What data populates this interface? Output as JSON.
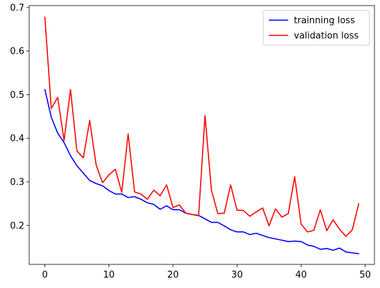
{
  "chart_data": {
    "type": "line",
    "title": "",
    "xlabel": "",
    "ylabel": "",
    "xlim": [
      -2.45,
      51.45
    ],
    "ylim": [
      0.1105,
      0.7045
    ],
    "xticks": [
      0,
      10,
      20,
      30,
      40,
      50
    ],
    "yticks": [
      0.2,
      0.3,
      0.4,
      0.5,
      0.6,
      0.7
    ],
    "grid": false,
    "legend_position": "top-right",
    "x": [
      0,
      1,
      2,
      3,
      4,
      5,
      6,
      7,
      8,
      9,
      10,
      11,
      12,
      13,
      14,
      15,
      16,
      17,
      18,
      19,
      20,
      21,
      22,
      23,
      24,
      25,
      26,
      27,
      28,
      29,
      30,
      31,
      32,
      33,
      34,
      35,
      36,
      37,
      38,
      39,
      40,
      41,
      42,
      43,
      44,
      45,
      46,
      47,
      48,
      49
    ],
    "series": [
      {
        "name": "trainning loss",
        "color": "#0000ff",
        "values": [
          0.512,
          0.448,
          0.412,
          0.39,
          0.36,
          0.337,
          0.32,
          0.303,
          0.296,
          0.291,
          0.28,
          0.272,
          0.272,
          0.264,
          0.266,
          0.26,
          0.252,
          0.248,
          0.237,
          0.245,
          0.236,
          0.236,
          0.228,
          0.225,
          0.223,
          0.215,
          0.207,
          0.207,
          0.199,
          0.19,
          0.185,
          0.185,
          0.179,
          0.182,
          0.177,
          0.172,
          0.169,
          0.166,
          0.163,
          0.164,
          0.163,
          0.155,
          0.152,
          0.145,
          0.147,
          0.143,
          0.148,
          0.139,
          0.137,
          0.135
        ]
      },
      {
        "name": "validation loss",
        "color": "#ff0000",
        "values": [
          0.678,
          0.468,
          0.494,
          0.395,
          0.512,
          0.371,
          0.355,
          0.441,
          0.339,
          0.298,
          0.316,
          0.329,
          0.276,
          0.41,
          0.277,
          0.272,
          0.26,
          0.281,
          0.268,
          0.293,
          0.241,
          0.247,
          0.228,
          0.225,
          0.222,
          0.452,
          0.281,
          0.227,
          0.228,
          0.293,
          0.235,
          0.234,
          0.221,
          0.231,
          0.24,
          0.199,
          0.238,
          0.219,
          0.227,
          0.312,
          0.203,
          0.185,
          0.189,
          0.236,
          0.188,
          0.213,
          0.191,
          0.175,
          0.19,
          0.25
        ]
      }
    ]
  }
}
